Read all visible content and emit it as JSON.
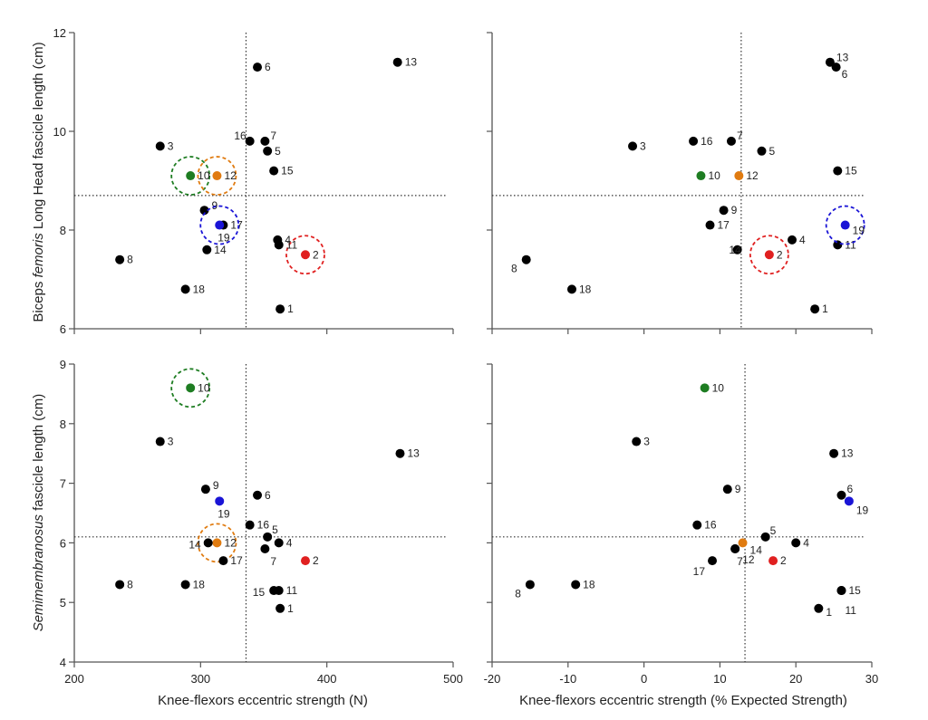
{
  "colors": {
    "default": "#000000",
    "green": "#1e7d22",
    "orange": "#e07b10",
    "blue": "#1a14d6",
    "red": "#e02020"
  },
  "labels": {
    "ylabel_top": [
      "Biceps ",
      "femoris",
      " Long Head fascicle length (cm)"
    ],
    "ylabel_bottom": [
      "Semimembranosus",
      " fascicle length (cm)"
    ],
    "xlabel_left": "Knee-flexors eccentric strength (N)",
    "xlabel_right": "Knee-flexors eccentric strength (% Expected Strength)"
  },
  "chart_data": [
    {
      "type": "scatter",
      "panel": "top-left",
      "xlim": [
        200,
        500
      ],
      "ylim": [
        6,
        12
      ],
      "yticks": [
        6,
        8,
        10,
        12
      ],
      "ref_x": 336,
      "ref_y": 8.7,
      "points": [
        {
          "id": "1",
          "x": 363,
          "y": 6.4
        },
        {
          "id": "2",
          "x": 383,
          "y": 7.5,
          "color": "red",
          "circled": true
        },
        {
          "id": "3",
          "x": 268,
          "y": 9.7
        },
        {
          "id": "4",
          "x": 361,
          "y": 7.8
        },
        {
          "id": "5",
          "x": 353,
          "y": 9.6
        },
        {
          "id": "6",
          "x": 345,
          "y": 11.3
        },
        {
          "id": "7",
          "x": 351,
          "y": 9.8
        },
        {
          "id": "8",
          "x": 236,
          "y": 7.4
        },
        {
          "id": "9",
          "x": 303,
          "y": 8.4
        },
        {
          "id": "10",
          "x": 292,
          "y": 9.1,
          "color": "green",
          "circled": true
        },
        {
          "id": "11",
          "x": 362,
          "y": 7.7
        },
        {
          "id": "12",
          "x": 313,
          "y": 9.1,
          "color": "orange",
          "circled": true
        },
        {
          "id": "13",
          "x": 456,
          "y": 11.4
        },
        {
          "id": "14",
          "x": 305,
          "y": 7.6
        },
        {
          "id": "15",
          "x": 358,
          "y": 9.2
        },
        {
          "id": "16",
          "x": 339,
          "y": 9.8
        },
        {
          "id": "17",
          "x": 318,
          "y": 8.1
        },
        {
          "id": "18",
          "x": 288,
          "y": 6.8
        },
        {
          "id": "19",
          "x": 315,
          "y": 8.1,
          "color": "blue",
          "circled": true
        }
      ]
    },
    {
      "type": "scatter",
      "panel": "top-right",
      "xlim": [
        -20,
        30
      ],
      "ylim": [
        6,
        12
      ],
      "yticks": [
        6,
        8,
        10,
        12
      ],
      "ref_x": 12.8,
      "ref_y": 8.7,
      "points": [
        {
          "id": "1",
          "x": 22.5,
          "y": 6.4
        },
        {
          "id": "2",
          "x": 16.5,
          "y": 7.5,
          "color": "red",
          "circled": true
        },
        {
          "id": "3",
          "x": -1.5,
          "y": 9.7
        },
        {
          "id": "4",
          "x": 19.5,
          "y": 7.8
        },
        {
          "id": "5",
          "x": 15.5,
          "y": 9.6
        },
        {
          "id": "6",
          "x": 25.3,
          "y": 11.3
        },
        {
          "id": "7",
          "x": 11.5,
          "y": 9.8
        },
        {
          "id": "8",
          "x": -15.5,
          "y": 7.4
        },
        {
          "id": "9",
          "x": 10.5,
          "y": 8.4
        },
        {
          "id": "10",
          "x": 7.5,
          "y": 9.1,
          "color": "green"
        },
        {
          "id": "11",
          "x": 25.5,
          "y": 7.7
        },
        {
          "id": "12",
          "x": 12.5,
          "y": 9.1,
          "color": "orange"
        },
        {
          "id": "13",
          "x": 24.5,
          "y": 11.4
        },
        {
          "id": "14",
          "x": 12.3,
          "y": 7.6
        },
        {
          "id": "15",
          "x": 25.5,
          "y": 9.2
        },
        {
          "id": "16",
          "x": 6.5,
          "y": 9.8
        },
        {
          "id": "17",
          "x": 8.7,
          "y": 8.1
        },
        {
          "id": "18",
          "x": -9.5,
          "y": 6.8
        },
        {
          "id": "19",
          "x": 26.5,
          "y": 8.1,
          "color": "blue",
          "circled": true
        }
      ]
    },
    {
      "type": "scatter",
      "panel": "bottom-left",
      "xlim": [
        200,
        500
      ],
      "ylim": [
        4,
        9
      ],
      "xticks": [
        200,
        300,
        400,
        500
      ],
      "yticks": [
        4,
        5,
        6,
        7,
        8,
        9
      ],
      "ref_x": 336,
      "ref_y": 6.1,
      "points": [
        {
          "id": "1",
          "x": 363,
          "y": 4.9
        },
        {
          "id": "2",
          "x": 383,
          "y": 5.7,
          "color": "red"
        },
        {
          "id": "3",
          "x": 268,
          "y": 7.7
        },
        {
          "id": "4",
          "x": 362,
          "y": 6.0
        },
        {
          "id": "5",
          "x": 353,
          "y": 6.1
        },
        {
          "id": "6",
          "x": 345,
          "y": 6.8
        },
        {
          "id": "7",
          "x": 351,
          "y": 5.9
        },
        {
          "id": "8",
          "x": 236,
          "y": 5.3
        },
        {
          "id": "9",
          "x": 304,
          "y": 6.9
        },
        {
          "id": "10",
          "x": 292,
          "y": 8.6,
          "color": "green",
          "circled": true
        },
        {
          "id": "11",
          "x": 362,
          "y": 5.2
        },
        {
          "id": "12",
          "x": 313,
          "y": 6.0,
          "color": "orange",
          "circled": true
        },
        {
          "id": "13",
          "x": 458,
          "y": 7.5
        },
        {
          "id": "14",
          "x": 306,
          "y": 6.0
        },
        {
          "id": "15",
          "x": 358,
          "y": 5.2
        },
        {
          "id": "16",
          "x": 339,
          "y": 6.3
        },
        {
          "id": "17",
          "x": 318,
          "y": 5.7
        },
        {
          "id": "18",
          "x": 288,
          "y": 5.3
        },
        {
          "id": "19",
          "x": 315,
          "y": 6.7,
          "color": "blue"
        }
      ]
    },
    {
      "type": "scatter",
      "panel": "bottom-right",
      "xlim": [
        -20,
        30
      ],
      "ylim": [
        4,
        9
      ],
      "xticks": [
        -20,
        -10,
        0,
        10,
        20,
        30
      ],
      "yticks": [
        4,
        5,
        6,
        7,
        8,
        9
      ],
      "ref_x": 13.3,
      "ref_y": 6.1,
      "points": [
        {
          "id": "1",
          "x": 23.0,
          "y": 4.9
        },
        {
          "id": "2",
          "x": 17.0,
          "y": 5.7,
          "color": "red"
        },
        {
          "id": "3",
          "x": -1.0,
          "y": 7.7
        },
        {
          "id": "4",
          "x": 20.0,
          "y": 6.0
        },
        {
          "id": "5",
          "x": 16.0,
          "y": 6.1
        },
        {
          "id": "6",
          "x": 26.0,
          "y": 6.8
        },
        {
          "id": "7",
          "x": 12.0,
          "y": 5.9
        },
        {
          "id": "8",
          "x": -15.0,
          "y": 5.3
        },
        {
          "id": "9",
          "x": 11.0,
          "y": 6.9
        },
        {
          "id": "10",
          "x": 8.0,
          "y": 8.6,
          "color": "green"
        },
        {
          "id": "11",
          "x": 26.0,
          "y": 5.2
        },
        {
          "id": "12",
          "x": 12.0,
          "y": 5.9
        },
        {
          "id": "13",
          "x": 25.0,
          "y": 7.5
        },
        {
          "id": "14",
          "x": 13.0,
          "y": 6.0,
          "color": "orange"
        },
        {
          "id": "15",
          "x": 26.0,
          "y": 5.2
        },
        {
          "id": "16",
          "x": 7.0,
          "y": 6.3
        },
        {
          "id": "17",
          "x": 9.0,
          "y": 5.7
        },
        {
          "id": "18",
          "x": -9.0,
          "y": 5.3
        },
        {
          "id": "19",
          "x": 27.0,
          "y": 6.7,
          "color": "blue"
        }
      ]
    }
  ]
}
